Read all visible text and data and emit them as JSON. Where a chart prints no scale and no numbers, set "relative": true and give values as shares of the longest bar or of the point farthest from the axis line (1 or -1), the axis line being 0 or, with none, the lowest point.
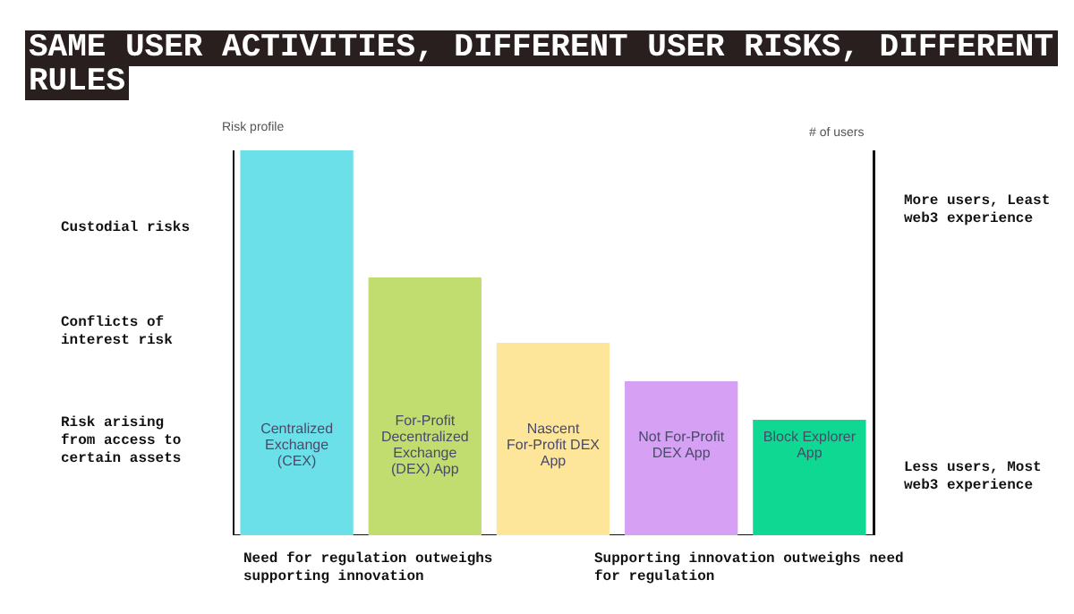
{
  "chart_data": {
    "type": "bar",
    "title": "SAME USER ACTIVITIES, DIFFERENT USER RISKS, DIFFERENT RULES",
    "ylabel": "Risk profile",
    "y2label": "# of users",
    "categories": [
      "Centralized Exchange (CEX)",
      "For-Profit Decentralized Exchange (DEX) App",
      "Nascent For-Profit DEX App",
      "Not For-Profit DEX App",
      "Block Explorer App"
    ],
    "values": [
      1,
      0.67,
      0.5,
      0.4,
      0.3
    ],
    "colors": [
      "#6ce0e8",
      "#c2dd6f",
      "#fde69a",
      "#d6a0f5",
      "#0ed891"
    ],
    "relative": true,
    "grid": false,
    "legend": false,
    "annotations": [
      "Custodial risks",
      "Conflicts of interest risk",
      "Risk arising from access to certain assets",
      "More users, Least web3 experience",
      "Less users, Most web3 experience",
      "Need for regulation outweighs supporting innovation",
      "Supporting innovation outweighs need for regulation"
    ]
  }
}
